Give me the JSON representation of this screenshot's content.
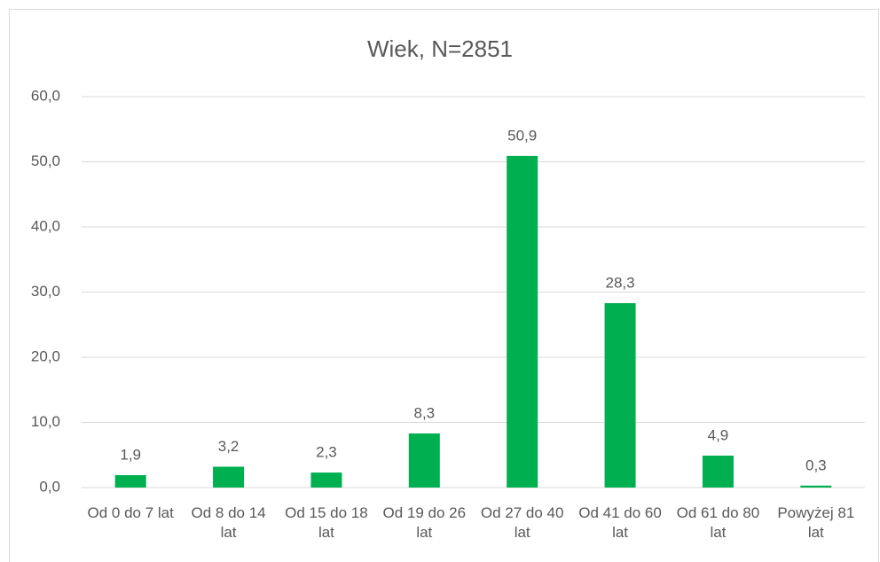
{
  "chart_data": {
    "type": "bar",
    "title": "Wiek, N=2851",
    "categories": [
      "Od 0 do 7 lat",
      "Od 8 do 14 lat",
      "Od 15 do 18 lat",
      "Od 19 do 26 lat",
      "Od 27 do 40 lat",
      "Od 41 do 60 lat",
      "Od 61 do 80 lat",
      "Powyżej 81 lat"
    ],
    "values": [
      1.9,
      3.2,
      2.3,
      8.3,
      50.9,
      28.3,
      4.9,
      0.3
    ],
    "value_labels": [
      "1,9",
      "3,2",
      "2,3",
      "8,3",
      "50,9",
      "28,3",
      "4,9",
      "0,3"
    ],
    "color": "#00b050",
    "ylim": [
      0,
      60
    ],
    "yticks": [
      {
        "value": 0,
        "label": "0,0"
      },
      {
        "value": 10,
        "label": "10,0"
      },
      {
        "value": 20,
        "label": "20,0"
      },
      {
        "value": 30,
        "label": "30,0"
      },
      {
        "value": 40,
        "label": "40,0"
      },
      {
        "value": 50,
        "label": "50,0"
      },
      {
        "value": 60,
        "label": "60,0"
      }
    ],
    "grid": true
  }
}
